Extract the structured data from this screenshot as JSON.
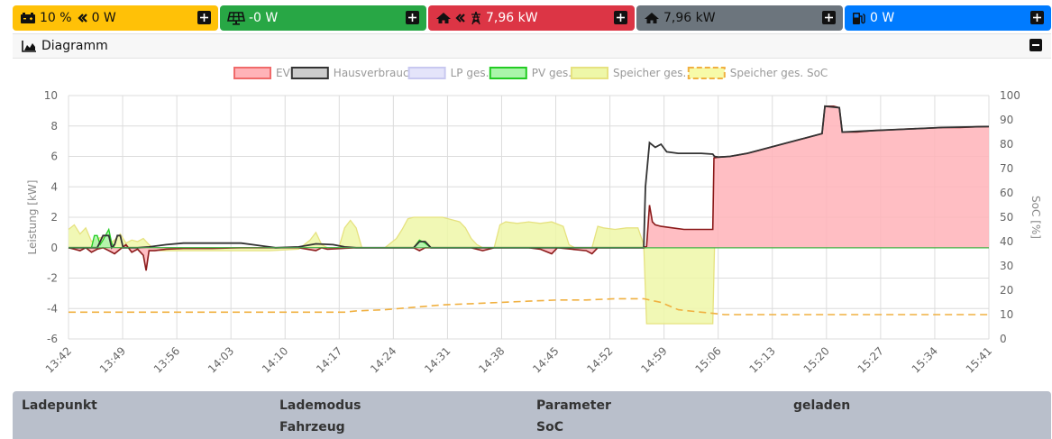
{
  "status_bar": {
    "battery": {
      "soc": "10 %",
      "power": "0 W",
      "color": "#ffc107",
      "icon": "battery-car-icon"
    },
    "pv": {
      "power": "-0 W",
      "color": "#28a745",
      "icon": "solar-panel-icon"
    },
    "grid": {
      "power": "7,96 kW",
      "color": "#dc3545",
      "icon": "grid-tower-icon"
    },
    "house": {
      "power": "7,96 kW",
      "color": "#6c757d",
      "icon": "home-icon"
    },
    "charge_point": {
      "power": "0 W",
      "color": "#007bff",
      "icon": "charging-station-icon"
    }
  },
  "chart_card": {
    "title": "Diagramm"
  },
  "chart_data": {
    "type": "line",
    "legend": {
      "position": "top",
      "entries": [
        {
          "name": "EVU",
          "color": "#ff6b6b",
          "fill": "#ffb3b8"
        },
        {
          "name": "Hausverbrauch",
          "color": "#333333",
          "fill": "#cccccc"
        },
        {
          "name": "LP ges.",
          "color": "#c8c8f0",
          "fill": "#e4e4fa"
        },
        {
          "name": "PV ges.",
          "color": "#22cc22",
          "fill": "#aaf5aa"
        },
        {
          "name": "Speicher ges.",
          "color": "#e6e280",
          "fill": "#eef7a8"
        },
        {
          "name": "Speicher ges. SoC",
          "color": "#f0b040",
          "fill": "#f7faa8",
          "dashed": true
        }
      ]
    },
    "ylabel_left": "Leistung [kW]",
    "ylabel_right": "SoC [%]",
    "ylim_left": [
      -6,
      10
    ],
    "yticks_left": [
      "10",
      "8",
      "6",
      "4",
      "2",
      "0",
      "-2",
      "-4",
      "-6"
    ],
    "ylim_right": [
      0,
      100
    ],
    "yticks_right": [
      "100",
      "90",
      "80",
      "70",
      "60",
      "50",
      "40",
      "30",
      "20",
      "10",
      "0"
    ],
    "x_tick_labels": [
      "13:42",
      "13:49",
      "13:56",
      "14:03",
      "14:10",
      "14:17",
      "14:24",
      "14:31",
      "14:38",
      "14:45",
      "14:52",
      "14:59",
      "15:06",
      "15:13",
      "15:20",
      "15:27",
      "15:34",
      "15:41"
    ],
    "x_minutes_range": [
      0,
      119
    ],
    "grid": true,
    "series": [
      {
        "name": "EVU",
        "points": [
          [
            0,
            0
          ],
          [
            1,
            -0.1
          ],
          [
            2,
            -0.2
          ],
          [
            3,
            0
          ],
          [
            4,
            -0.3
          ],
          [
            5,
            -0.1
          ],
          [
            6,
            0
          ],
          [
            7,
            -0.2
          ],
          [
            8,
            -0.4
          ],
          [
            9,
            -0.1
          ],
          [
            10,
            0.2
          ],
          [
            11,
            -0.3
          ],
          [
            12,
            -0.1
          ],
          [
            13,
            -0.5
          ],
          [
            13.5,
            -1.5
          ],
          [
            14,
            -0.2
          ],
          [
            15,
            -0.2
          ],
          [
            17,
            -0.1
          ],
          [
            20,
            -0.05
          ],
          [
            25,
            -0.05
          ],
          [
            30,
            0
          ],
          [
            40,
            0
          ],
          [
            43,
            -0.2
          ],
          [
            44,
            0
          ],
          [
            45,
            -0.1
          ],
          [
            50,
            0
          ],
          [
            60,
            0
          ],
          [
            61,
            -0.2
          ],
          [
            62,
            0
          ],
          [
            70,
            0
          ],
          [
            72,
            -0.2
          ],
          [
            74,
            0
          ],
          [
            80,
            0
          ],
          [
            82,
            -0.1
          ],
          [
            84,
            -0.4
          ],
          [
            85,
            0
          ],
          [
            90,
            -0.2
          ],
          [
            91,
            -0.4
          ],
          [
            92,
            0
          ],
          [
            100,
            0
          ],
          [
            100.5,
            0.1
          ],
          [
            101,
            2.8
          ],
          [
            101.5,
            1.7
          ],
          [
            102,
            1.5
          ],
          [
            103,
            1.4
          ],
          [
            105,
            1.3
          ],
          [
            107,
            1.2
          ],
          [
            110,
            1.2
          ],
          [
            112,
            1.2
          ],
          [
            112.2,
            5.9
          ],
          [
            113,
            5.95
          ],
          [
            115,
            6.0
          ],
          [
            118,
            6.2
          ],
          [
            120,
            6.4
          ],
          [
            122,
            6.6
          ],
          [
            124,
            6.8
          ],
          [
            126,
            7.0
          ],
          [
            128,
            7.2
          ],
          [
            130,
            7.4
          ],
          [
            131,
            7.5
          ],
          [
            131.5,
            9.3
          ],
          [
            133,
            9.3
          ],
          [
            134,
            9.2
          ],
          [
            134.5,
            7.6
          ],
          [
            137,
            7.6
          ],
          [
            140,
            7.7
          ],
          [
            143,
            7.75
          ],
          [
            146,
            7.8
          ],
          [
            149,
            7.85
          ],
          [
            152,
            7.9
          ],
          [
            155,
            7.9
          ],
          [
            158,
            7.95
          ],
          [
            160,
            7.96
          ]
        ]
      },
      {
        "name": "Hausverbrauch",
        "points": [
          [
            0,
            0
          ],
          [
            5,
            0
          ],
          [
            6,
            0.8
          ],
          [
            7,
            0.8
          ],
          [
            7.5,
            0
          ],
          [
            8,
            0.2
          ],
          [
            8.5,
            0.8
          ],
          [
            9,
            0.8
          ],
          [
            9.5,
            0
          ],
          [
            12,
            0
          ],
          [
            14,
            0.05
          ],
          [
            17,
            0.2
          ],
          [
            20,
            0.3
          ],
          [
            25,
            0.3
          ],
          [
            30,
            0.3
          ],
          [
            32,
            0.2
          ],
          [
            34,
            0.1
          ],
          [
            36,
            0
          ],
          [
            40,
            0.05
          ],
          [
            43,
            0.25
          ],
          [
            46,
            0.2
          ],
          [
            48,
            0.05
          ],
          [
            50,
            0
          ],
          [
            55,
            0
          ],
          [
            60,
            0
          ],
          [
            61,
            0.4
          ],
          [
            62,
            0.4
          ],
          [
            63,
            0
          ],
          [
            80,
            0
          ],
          [
            85,
            0
          ],
          [
            100,
            0
          ],
          [
            100.3,
            4
          ],
          [
            101,
            6.9
          ],
          [
            102,
            6.6
          ],
          [
            103,
            6.8
          ],
          [
            104,
            6.3
          ],
          [
            106,
            6.2
          ],
          [
            110,
            6.2
          ],
          [
            112,
            6.15
          ],
          [
            112.3,
            6
          ],
          [
            113,
            5.95
          ],
          [
            115,
            6.0
          ],
          [
            118,
            6.2
          ],
          [
            122,
            6.6
          ],
          [
            126,
            7.0
          ],
          [
            130,
            7.4
          ],
          [
            131,
            7.5
          ],
          [
            131.5,
            9.3
          ],
          [
            134,
            9.2
          ],
          [
            134.5,
            7.6
          ],
          [
            140,
            7.7
          ],
          [
            146,
            7.8
          ],
          [
            152,
            7.9
          ],
          [
            160,
            7.96
          ]
        ]
      },
      {
        "name": "PV ges.",
        "points": [
          [
            0,
            0
          ],
          [
            4,
            0
          ],
          [
            4.5,
            0.8
          ],
          [
            5,
            0.8
          ],
          [
            5.5,
            0.2
          ],
          [
            6,
            0.5
          ],
          [
            7,
            1.2
          ],
          [
            7.5,
            0.3
          ],
          [
            8,
            0
          ],
          [
            10,
            0
          ],
          [
            60,
            0
          ],
          [
            61,
            0.5
          ],
          [
            62,
            0.3
          ],
          [
            63,
            0
          ],
          [
            160,
            0
          ]
        ]
      },
      {
        "name": "Speicher ges.",
        "points": [
          [
            0,
            1.2
          ],
          [
            1,
            1.5
          ],
          [
            2,
            0.9
          ],
          [
            3,
            1.3
          ],
          [
            4,
            0.4
          ],
          [
            5,
            0.6
          ],
          [
            6,
            0.7
          ],
          [
            7,
            0.2
          ],
          [
            8,
            0.5
          ],
          [
            9,
            0.9
          ],
          [
            10,
            0.3
          ],
          [
            11,
            0.5
          ],
          [
            12,
            0.4
          ],
          [
            13,
            0.6
          ],
          [
            14,
            0.2
          ],
          [
            15,
            -0.1
          ],
          [
            16,
            -0.2
          ],
          [
            20,
            -0.2
          ],
          [
            25,
            -0.2
          ],
          [
            30,
            -0.2
          ],
          [
            35,
            -0.2
          ],
          [
            40,
            -0.1
          ],
          [
            42,
            0.5
          ],
          [
            43,
            1.0
          ],
          [
            44,
            0.2
          ],
          [
            45,
            0
          ],
          [
            47,
            0
          ],
          [
            48,
            1.3
          ],
          [
            49,
            1.8
          ],
          [
            50,
            1.3
          ],
          [
            51,
            0
          ],
          [
            55,
            0
          ],
          [
            57,
            0.6
          ],
          [
            58,
            1.2
          ],
          [
            59,
            1.9
          ],
          [
            60,
            2.0
          ],
          [
            62,
            2.0
          ],
          [
            65,
            2.0
          ],
          [
            68,
            1.7
          ],
          [
            69,
            1.3
          ],
          [
            70,
            0.6
          ],
          [
            71,
            0.2
          ],
          [
            72,
            0
          ],
          [
            74,
            0
          ],
          [
            75,
            1.5
          ],
          [
            76,
            1.7
          ],
          [
            78,
            1.6
          ],
          [
            80,
            1.7
          ],
          [
            82,
            1.6
          ],
          [
            84,
            1.7
          ],
          [
            86,
            1.4
          ],
          [
            87,
            0.2
          ],
          [
            88,
            0
          ],
          [
            91,
            0
          ],
          [
            92,
            1.4
          ],
          [
            93,
            1.3
          ],
          [
            95,
            1.2
          ],
          [
            97,
            1.3
          ],
          [
            99,
            1.3
          ],
          [
            100,
            0.2
          ],
          [
            100.5,
            -5
          ],
          [
            101,
            -5
          ],
          [
            106,
            -5
          ],
          [
            112,
            -5
          ],
          [
            112.3,
            0
          ],
          [
            160,
            0
          ]
        ]
      },
      {
        "name": "Speicher ges. SoC",
        "points": [
          [
            0,
            11
          ],
          [
            10,
            11
          ],
          [
            20,
            11
          ],
          [
            30,
            11
          ],
          [
            40,
            11
          ],
          [
            48,
            11
          ],
          [
            50,
            11.5
          ],
          [
            55,
            12
          ],
          [
            60,
            13
          ],
          [
            65,
            14
          ],
          [
            70,
            14.5
          ],
          [
            75,
            15
          ],
          [
            80,
            15.5
          ],
          [
            85,
            16
          ],
          [
            90,
            16
          ],
          [
            95,
            16.5
          ],
          [
            100,
            16.5
          ],
          [
            103,
            15
          ],
          [
            106,
            12
          ],
          [
            110,
            11
          ],
          [
            112,
            10.5
          ],
          [
            114,
            10
          ],
          [
            120,
            10
          ],
          [
            130,
            10
          ],
          [
            140,
            10
          ],
          [
            150,
            10
          ],
          [
            160,
            10
          ]
        ]
      }
    ]
  },
  "table_header": {
    "col1": "Ladepunkt",
    "col2": "Lademodus",
    "col2b": "Fahrzeug",
    "col3": "Parameter",
    "col3b": "SoC",
    "col4": "geladen"
  }
}
